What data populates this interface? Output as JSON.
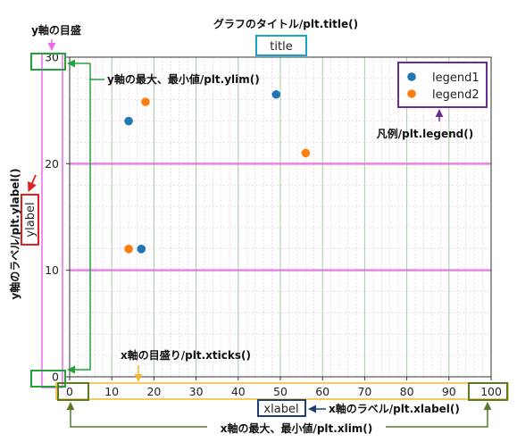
{
  "annotations": {
    "title_caption": "グラフのタイトル/plt.title()",
    "yticks_caption": "y軸の目盛",
    "ylim_caption": "y軸の最大、最小値/plt.ylim()",
    "ylabel_caption": "y軸のラベル/plt.ylabel()",
    "legend_caption": "凡例/plt.legend()",
    "xticks_caption": "x軸の目盛り/plt.xticks()",
    "xlabel_caption": "x軸のラベル/plt.xlabel()",
    "xlim_caption": "x軸の最大、最小値/plt.xlim()"
  },
  "colors": {
    "title_box": "#1aa3c9",
    "yticks_box": "#ee66ee",
    "ylim_box": "#21a33a",
    "ylabel_box": "#dd2222",
    "legend_box": "#6a2d91",
    "xticks_box": "#f0b82e",
    "xlabel_box": "#1f3d7a",
    "xlim_box": "#5a7a2a",
    "series1": "#1f77b4",
    "series2": "#ff7f0e",
    "major_x_grid": "#5aa05a",
    "major_y_grid": "#e070e0",
    "minor_grid": "#c060c0"
  },
  "chart_data": {
    "type": "scatter",
    "title": "title",
    "xlabel": "xlabel",
    "ylabel": "ylabel",
    "xlim": [
      0,
      100
    ],
    "ylim": [
      0,
      30
    ],
    "xticks": [
      0,
      10,
      20,
      30,
      40,
      50,
      60,
      70,
      80,
      90,
      100
    ],
    "yticks": [
      0,
      10,
      20,
      30
    ],
    "grid": true,
    "legend_position": "top-right",
    "series": [
      {
        "name": "legend1",
        "color": "#1f77b4",
        "points": [
          [
            14,
            24
          ],
          [
            49,
            26.5
          ],
          [
            17,
            12
          ]
        ]
      },
      {
        "name": "legend2",
        "color": "#ff7f0e",
        "points": [
          [
            18,
            25.8
          ],
          [
            56,
            21
          ],
          [
            14,
            12
          ]
        ]
      }
    ]
  }
}
